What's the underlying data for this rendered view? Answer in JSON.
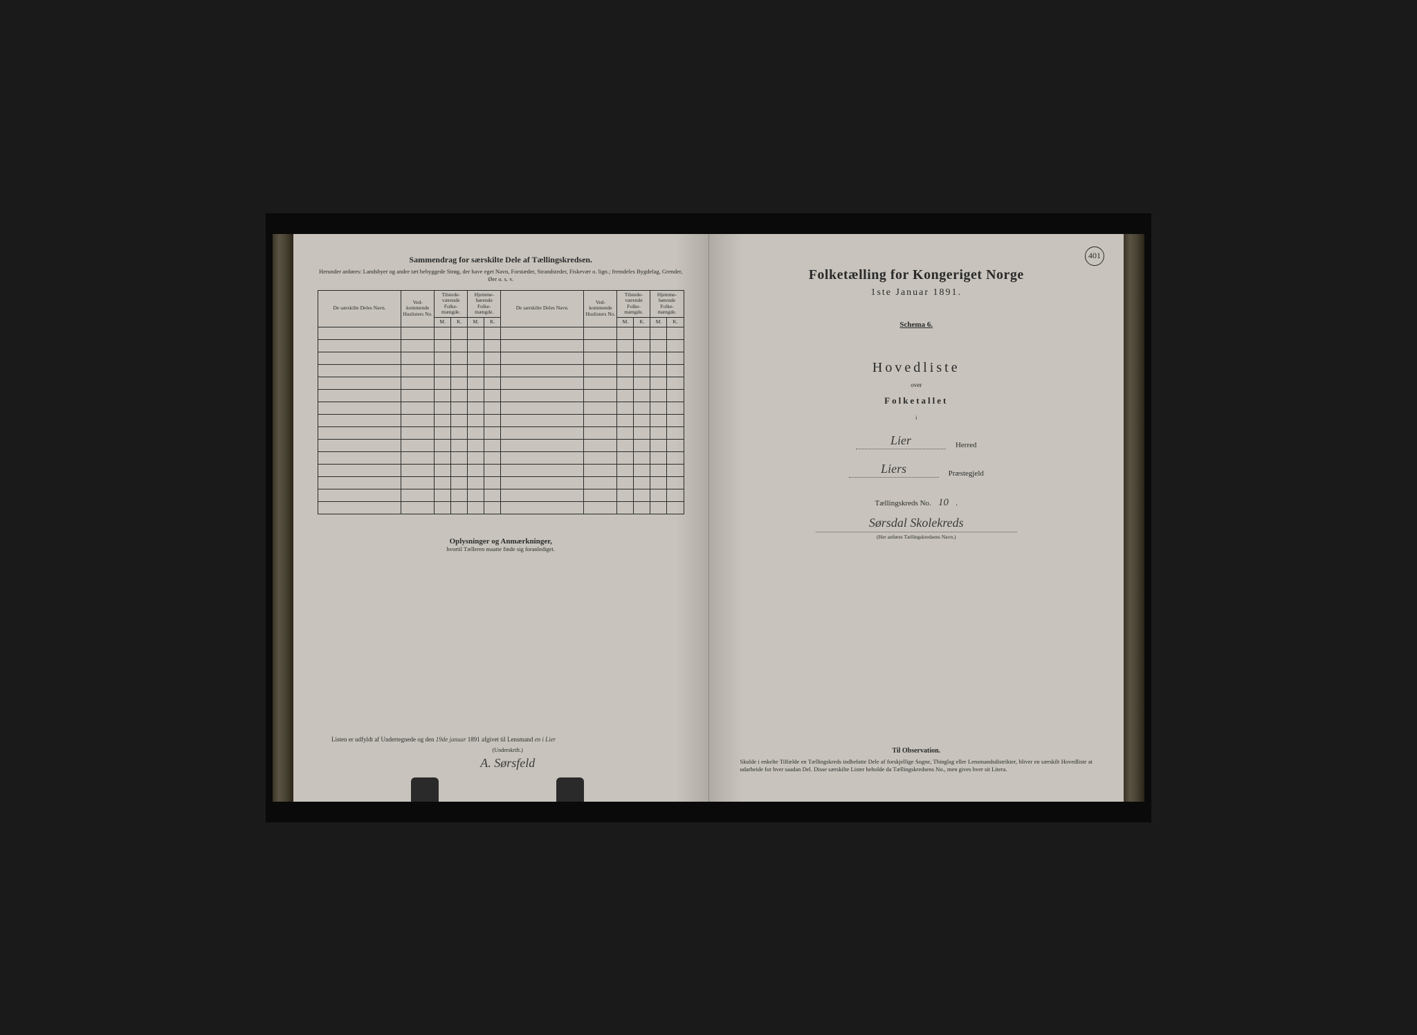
{
  "page_number": "401",
  "left": {
    "title": "Sammendrag for særskilte Dele af Tællingskredsen.",
    "subtitle": "Herunder anføres: Landsbyer og andre tæt bebyggede Strøg, der have eget Navn, Forstæder, Strandsteder, Fiskevær o. lign.; fremdeles Bygdelag, Grender, Øer o. s. v.",
    "headers": {
      "name": "De særskilte Deles Navn.",
      "husliste": "Ved-kommende Huslisters No.",
      "tilstede": "Tilstede-værende Folke-mængde.",
      "hjemme": "Hjemme-hørende Folke-mængde.",
      "m": "M.",
      "k": "K."
    },
    "oplys_title": "Oplysninger og Anmærkninger,",
    "oplys_sub": "hvortil Tælleren maatte finde sig foranlediget.",
    "sig_prefix": "Listen er udfyldt af Undertegnede og den",
    "sig_date": "19de januar",
    "sig_year": " 1891 afgivet til Lensmand",
    "sig_place": "en i Lier",
    "underskrift_label": "(Underskrift.)",
    "signature": "A. Sørsfeld"
  },
  "right": {
    "title": "Folketælling for Kongeriget Norge",
    "date": "1ste Januar 1891.",
    "schema": "Schema 6.",
    "hovedliste": "Hovedliste",
    "over": "over",
    "folketallet": "Folketallet",
    "ii": "i",
    "herred_value": "Lier",
    "herred_label": "Herred",
    "praeste_value": "Liers",
    "praeste_label": "Præstegjeld",
    "kreds_label": "Tællingskreds No.",
    "kreds_no": "10",
    "kreds_name": "Sørsdal Skolekreds",
    "kreds_note": "(Her anføres Tællingskredsens Navn.)",
    "obs_title": "Til Observation.",
    "obs_body": "Skulde i enkelte Tilfælde en Tællingskreds indbefatte Dele af forskjellige Sogne, Thinglag eller Lensmandsdistrikter, bliver en særskilt Hovedliste at udarbeide for hver saadan Del. Disse særskilte Lister beholde da Tællingskredsens No., men gives hver sit Litera."
  },
  "style": {
    "paper_color": "#c8c4bd",
    "ink_color": "#2a2a2a",
    "background": "#1a1a1a",
    "title_fontsize": 20,
    "body_fontsize": 9
  },
  "empty_rows": 15
}
